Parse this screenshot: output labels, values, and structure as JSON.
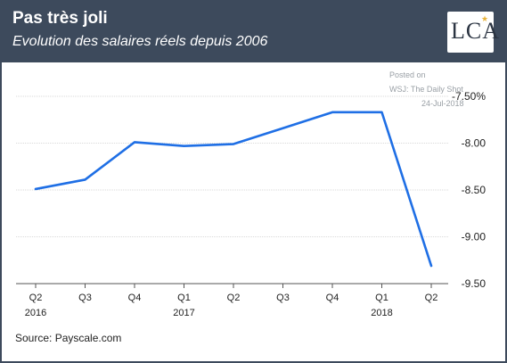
{
  "header": {
    "title": "Pas très joli",
    "subtitle": "Evolution des salaires réels depuis 2006",
    "logo": "LCA"
  },
  "watermark": {
    "line1": "Posted on",
    "line2": "WSJ: The Daily Shot",
    "line3": "24-Jul-2018"
  },
  "source": "Source: Payscale.com",
  "colors": {
    "header_bg": "#3d4a5c",
    "line": "#1f6fe5",
    "grid": "#d9d9d9"
  },
  "chart_data": {
    "type": "line",
    "categories": [
      "Q2",
      "Q3",
      "Q4",
      "Q1",
      "Q2",
      "Q3",
      "Q4",
      "Q1",
      "Q2"
    ],
    "year_labels": [
      {
        "index": 0,
        "label": "2016"
      },
      {
        "index": 3,
        "label": "2017"
      },
      {
        "index": 7,
        "label": "2018"
      }
    ],
    "series": [
      {
        "values": [
          -8.49,
          -8.39,
          -7.99,
          -8.03,
          -8.01,
          -7.84,
          -7.67,
          -7.67,
          -9.31
        ]
      }
    ],
    "y_ticks": [
      "-7.50%",
      "-8.00",
      "-8.50",
      "-9.00",
      "-9.50"
    ],
    "y_tick_values": [
      -7.5,
      -8.0,
      -8.5,
      -9.0,
      -9.5
    ],
    "ylim": [
      -9.5,
      -7.5
    ],
    "grid": true,
    "y_axis_position": "right"
  }
}
